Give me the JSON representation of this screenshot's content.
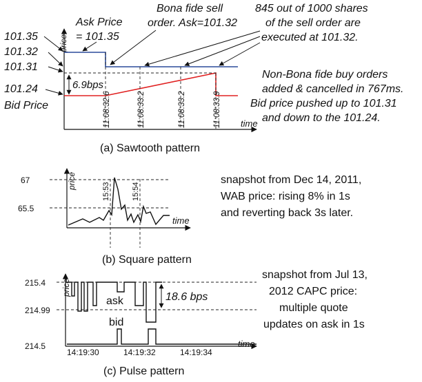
{
  "panel_a": {
    "caption": "(a) Sawtooth pattern",
    "axis_y": "price",
    "axis_x": "time",
    "labels": {
      "p1": "101.35",
      "p2": "101.32",
      "p3": "101.31",
      "p4": "101.24",
      "bid": "Bid Price",
      "ask1": "Ask Price",
      "ask2": "= 101.35",
      "bps": "6.9bps"
    },
    "notes": {
      "bona1": "Bona fide sell",
      "bona2": "order. Ask=101.32",
      "exec1": "845 out of 1000 shares",
      "exec2": "of the sell order are",
      "exec3": "executed at 101.32.",
      "non1": "Non-Bona fide buy orders",
      "non2": "added & cancelled in 767ms.",
      "non3": "Bid price pushed up to 101.31",
      "non4": "and down to the 101.24."
    },
    "times": [
      "11:08:32.6",
      "11:08:33.2",
      "11:08:33.2",
      "11:08:33.9"
    ],
    "colors": {
      "ask": "#2a4a9a",
      "bid": "#e02020"
    }
  },
  "panel_b": {
    "caption": "(b) Square pattern",
    "axis_y": "price",
    "axis_x": "time",
    "y_top": "67",
    "y_mid": "65.5",
    "times": [
      "15:53",
      "15:54"
    ],
    "notes": {
      "n1": "snapshot from Dec 14, 2011,",
      "n2": "WAB price: rising 8% in 1s",
      "n3": "and reverting back 3s later."
    }
  },
  "panel_c": {
    "caption": "(c) Pulse pattern",
    "axis_y": "price",
    "axis_x": "time",
    "y_top": "215.4",
    "y_mid": "214.99",
    "y_low": "214.5",
    "ask": "ask",
    "bid": "bid",
    "bps": "18.6 bps",
    "times": [
      "14:19:30",
      "14:19:32",
      "14:19:34"
    ],
    "notes": {
      "n1": "snapshot from Jul 13,",
      "n2": "2012 CAPC price:",
      "n3": "multiple quote",
      "n4": "updates on ask in 1s"
    }
  }
}
